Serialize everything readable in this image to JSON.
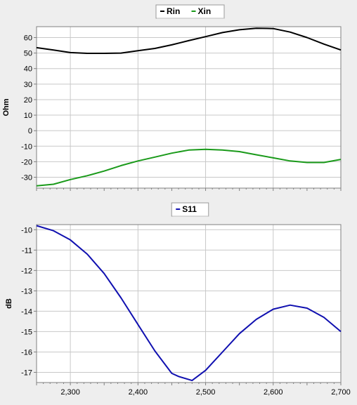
{
  "chart_data": [
    {
      "type": "line",
      "ylabel": "Ohm",
      "xlim": [
        2250,
        2700
      ],
      "ylim": [
        -37,
        67
      ],
      "yticks": [
        60,
        50,
        40,
        30,
        20,
        10,
        0,
        -10,
        -20,
        -30
      ],
      "ytick_labels": [
        "60",
        "50",
        "40",
        "30",
        "20",
        "10",
        "0",
        "-10",
        "-20",
        "-30"
      ],
      "xgrid": [
        2300,
        2400,
        2500,
        2600
      ],
      "grid": true,
      "legend_placement": "top-center",
      "series": [
        {
          "name": "Rin",
          "color": "#000000",
          "x": [
            2250,
            2275,
            2300,
            2325,
            2350,
            2375,
            2400,
            2425,
            2450,
            2475,
            2500,
            2525,
            2550,
            2575,
            2600,
            2625,
            2650,
            2675,
            2700
          ],
          "y": [
            53.5,
            52,
            50.3,
            49.8,
            49.8,
            50,
            51.5,
            53,
            55.3,
            58,
            60.6,
            63.2,
            65,
            66,
            65.8,
            63.5,
            60,
            55.8,
            52
          ]
        },
        {
          "name": "Xin",
          "color": "#1a9a1a",
          "x": [
            2250,
            2275,
            2300,
            2325,
            2350,
            2375,
            2400,
            2425,
            2450,
            2475,
            2500,
            2525,
            2550,
            2575,
            2600,
            2625,
            2650,
            2675,
            2700
          ],
          "y": [
            -35.5,
            -34.5,
            -31.5,
            -29,
            -26,
            -22.5,
            -19.5,
            -17,
            -14.5,
            -12.5,
            -12,
            -12.5,
            -13.5,
            -15.5,
            -17.5,
            -19.5,
            -20.5,
            -20.5,
            -18.5
          ]
        }
      ]
    },
    {
      "type": "line",
      "ylabel": "dB",
      "xlim": [
        2250,
        2700
      ],
      "ylim": [
        -17.5,
        -9.75
      ],
      "yticks": [
        -10,
        -11,
        -12,
        -13,
        -14,
        -15,
        -16,
        -17
      ],
      "ytick_labels": [
        "-10",
        "-11",
        "-12",
        "-13",
        "-14",
        "-15",
        "-16",
        "-17"
      ],
      "xticks": [
        2300,
        2400,
        2500,
        2600,
        2700
      ],
      "xtick_labels": [
        "2,300",
        "2,400",
        "2,500",
        "2,600",
        "2,700"
      ],
      "grid": true,
      "legend_placement": "top-center",
      "series": [
        {
          "name": "S11",
          "color": "#1010b0",
          "x": [
            2250,
            2275,
            2300,
            2325,
            2350,
            2375,
            2400,
            2425,
            2450,
            2460,
            2480,
            2500,
            2525,
            2550,
            2575,
            2600,
            2625,
            2650,
            2675,
            2700
          ],
          "y": [
            -9.8,
            -10.05,
            -10.5,
            -11.2,
            -12.15,
            -13.35,
            -14.65,
            -15.95,
            -17.05,
            -17.2,
            -17.4,
            -16.9,
            -16,
            -15.1,
            -14.4,
            -13.9,
            -13.7,
            -13.85,
            -14.3,
            -15.0
          ]
        }
      ]
    }
  ]
}
